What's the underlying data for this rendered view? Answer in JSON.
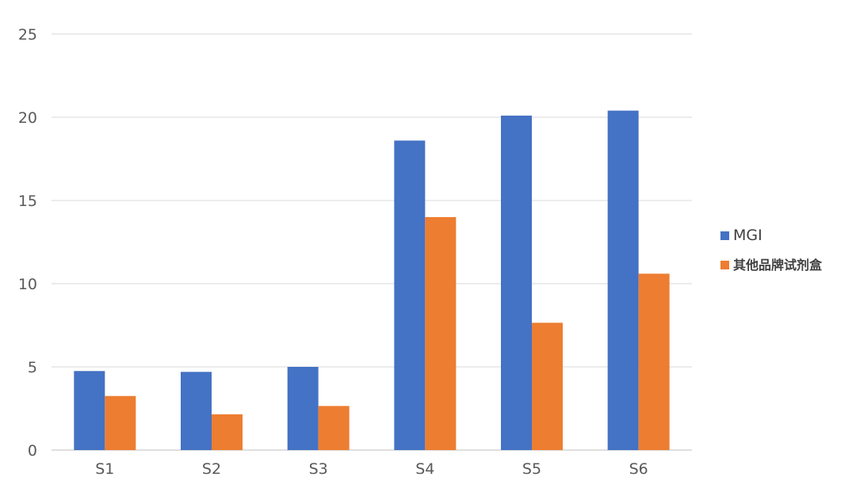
{
  "chart_data": {
    "type": "bar",
    "title": "",
    "xlabel": "",
    "ylabel": "",
    "categories": [
      "S1",
      "S2",
      "S3",
      "S4",
      "S5",
      "S6"
    ],
    "series": [
      {
        "name": "MGI",
        "color": "#4472C4",
        "values": [
          4.75,
          4.7,
          5.0,
          18.6,
          20.1,
          20.4
        ]
      },
      {
        "name": "其他品牌试剂盒",
        "color": "#ED7D31",
        "values": [
          3.25,
          2.15,
          2.65,
          14.0,
          7.65,
          10.6
        ]
      }
    ],
    "ylim": [
      0,
      25
    ],
    "yticks": [
      0,
      5,
      10,
      15,
      20,
      25
    ],
    "grid": true,
    "legend": "right"
  }
}
